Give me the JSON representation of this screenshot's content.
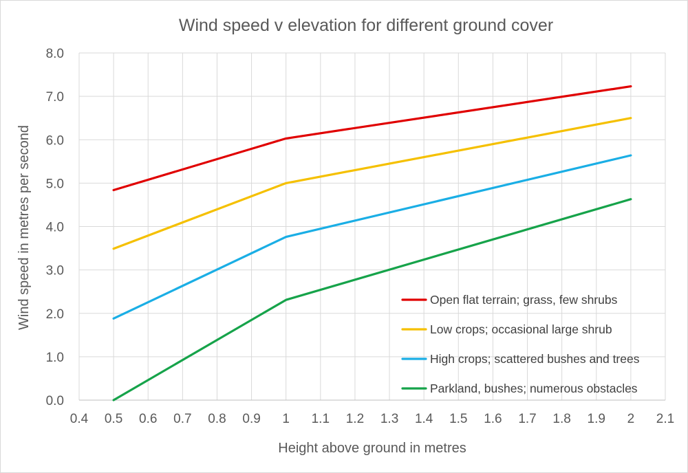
{
  "chart_data": {
    "type": "line",
    "title": "Wind speed v elevation for different ground cover",
    "xlabel": "Height above ground in metres",
    "ylabel": "Wind speed in metres per second",
    "xlim": [
      0.4,
      2.1
    ],
    "ylim": [
      0,
      8
    ],
    "x_ticks": [
      "0.4",
      "0.5",
      "0.6",
      "0.7",
      "0.8",
      "0.9",
      "1",
      "1.1",
      "1.2",
      "1.3",
      "1.4",
      "1.5",
      "1.6",
      "1.7",
      "1.8",
      "1.9",
      "2",
      "2.1"
    ],
    "y_ticks": [
      "0.0",
      "1.0",
      "2.0",
      "3.0",
      "4.0",
      "5.0",
      "6.0",
      "7.0",
      "8.0"
    ],
    "grid": "vertical and horizontal",
    "legend_position": "bottom-right",
    "series": [
      {
        "name": "Open flat terrain; grass, few shrubs",
        "color": "#e00000",
        "x": [
          0.5,
          1,
          2
        ],
        "y": [
          4.84,
          6.03,
          7.23
        ]
      },
      {
        "name": "Low crops; occasional large shrub",
        "color": "#f5c000",
        "x": [
          0.5,
          1,
          2
        ],
        "y": [
          3.49,
          5.0,
          6.5
        ]
      },
      {
        "name": "High crops; scattered bushes and trees",
        "color": "#1aaee5",
        "x": [
          0.5,
          1,
          2
        ],
        "y": [
          1.88,
          3.76,
          5.64
        ]
      },
      {
        "name": "Parkland, bushes; numerous obstacles",
        "color": "#16a34a",
        "x": [
          0.5,
          1,
          2
        ],
        "y": [
          0.0,
          2.31,
          4.63
        ]
      }
    ]
  }
}
